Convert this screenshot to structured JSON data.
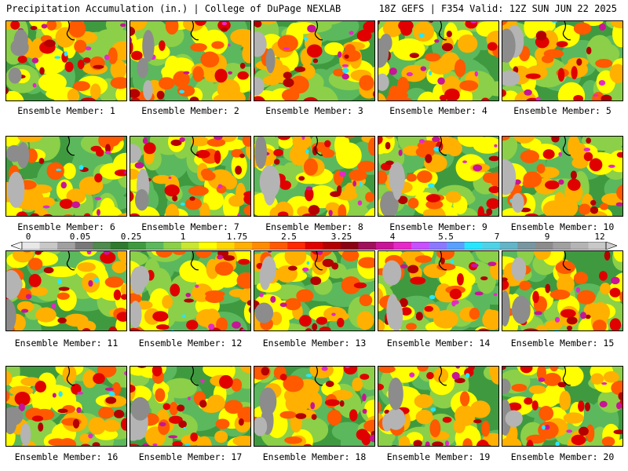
{
  "header": {
    "left": "Precipitation Accumulation (in.) | College of DuPage NEXLAB",
    "right": "18Z GEFS | F354 Valid: 12Z SUN JUN 22 2025"
  },
  "caption_prefix": "Ensemble Member: ",
  "members": [
    "1",
    "2",
    "3",
    "4",
    "5",
    "6",
    "7",
    "8",
    "9",
    "10",
    "11",
    "12",
    "13",
    "14",
    "15",
    "16",
    "17",
    "18",
    "19",
    "20"
  ],
  "colorbar": {
    "labels": [
      "0",
      "0.05",
      "0.25",
      "1",
      "1.75",
      "2.5",
      "3.25",
      "4",
      "5.5",
      "7",
      "9",
      "12"
    ],
    "colors": [
      "#e8e8e8",
      "#c8c8c8",
      "#a0a0a0",
      "#787878",
      "#4f8a4f",
      "#2f7a2f",
      "#3f9a3f",
      "#5cb85c",
      "#8bd048",
      "#c8e632",
      "#ffff00",
      "#ffd700",
      "#ffb000",
      "#ff8c00",
      "#ff5a00",
      "#ff2a00",
      "#e00000",
      "#b40000",
      "#8c0014",
      "#a0105a",
      "#c81496",
      "#e628c8",
      "#c850ff",
      "#8c78ff",
      "#5aa0ff",
      "#28e6ff",
      "#50d2e6",
      "#64b4c8",
      "#7896a0",
      "#8c8c8c",
      "#a0a0a0",
      "#b4b4b4",
      "#c8c8c8"
    ]
  },
  "map_palette": [
    "#b4b4b4",
    "#8c8c8c",
    "#2f7a2f",
    "#3f9a3f",
    "#5cb85c",
    "#8bd048",
    "#c8e632",
    "#ffff00",
    "#ffd700",
    "#ffb000",
    "#ff8c00",
    "#ff5a00",
    "#e00000",
    "#b40000",
    "#c81496",
    "#e628c8",
    "#28e6ff"
  ]
}
